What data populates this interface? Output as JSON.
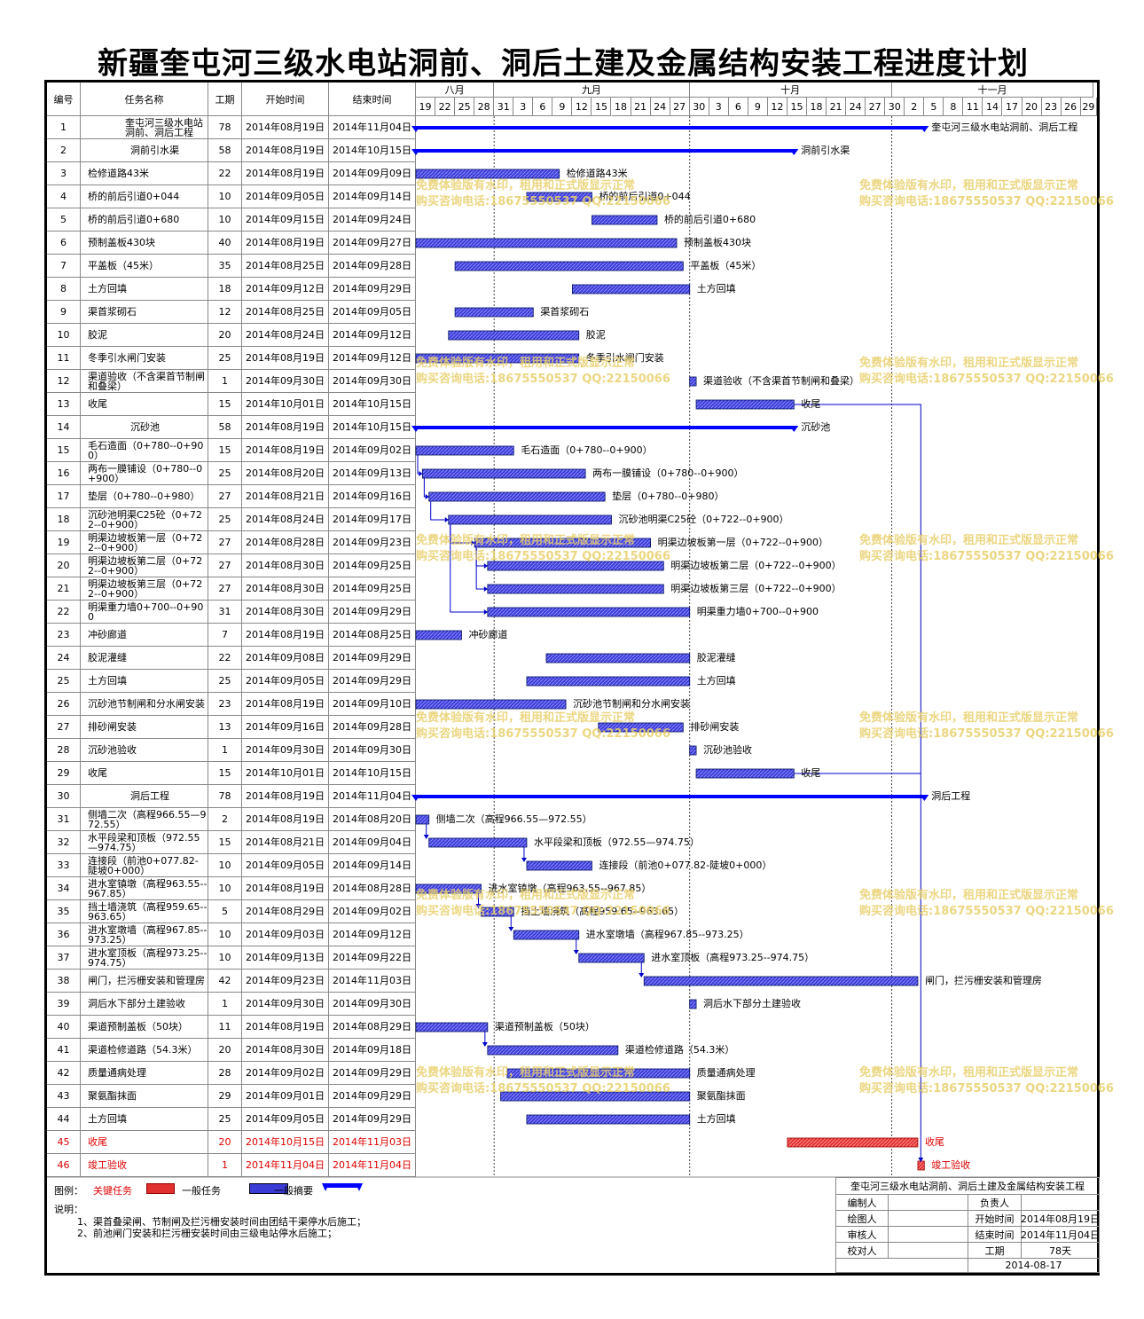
{
  "title": "新疆奎屯河三级水电站洞前、洞后土建及金属结构安装工程进度计划",
  "headers": {
    "num": "编号",
    "name": "任务名称",
    "dur": "工期",
    "start": "开始时间",
    "end": "结束时间"
  },
  "months": [
    "八月",
    "九月",
    "十月",
    "十一月"
  ],
  "days": [
    "19",
    "22",
    "25",
    "28",
    "31",
    "3",
    "6",
    "9",
    "12",
    "15",
    "18",
    "21",
    "24",
    "27",
    "30",
    "3",
    "6",
    "9",
    "12",
    "15",
    "18",
    "21",
    "24",
    "27",
    "30",
    "2",
    "5",
    "8",
    "11",
    "14",
    "17",
    "20",
    "23",
    "26",
    "29"
  ],
  "tasks": [
    {
      "id": "1",
      "name": "奎屯河三级水电站洞前、洞后工程",
      "dur": "78",
      "start": "2014年08月19日",
      "end": "2014年11月04日",
      "s": 0,
      "d": 78,
      "type": "summary",
      "label": "奎屯河三级水电站洞前、洞后工程"
    },
    {
      "id": "2",
      "name": "洞前引水渠",
      "dur": "58",
      "start": "2014年08月19日",
      "end": "2014年10月15日",
      "s": 0,
      "d": 58,
      "type": "summary",
      "label": "洞前引水渠"
    },
    {
      "id": "3",
      "name": "检修道路43米",
      "dur": "22",
      "start": "2014年08月19日",
      "end": "2014年09月09日",
      "s": 0,
      "d": 22,
      "type": "task",
      "label": "检修道路43米"
    },
    {
      "id": "4",
      "name": "桥的前后引道0+044",
      "dur": "10",
      "start": "2014年09月05日",
      "end": "2014年09月14日",
      "s": 17,
      "d": 10,
      "type": "task",
      "label": "桥的前后引道0+044"
    },
    {
      "id": "5",
      "name": "桥的前后引道0+680",
      "dur": "10",
      "start": "2014年09月15日",
      "end": "2014年09月24日",
      "s": 27,
      "d": 10,
      "type": "task",
      "label": "桥的前后引道0+680"
    },
    {
      "id": "6",
      "name": "预制盖板430块",
      "dur": "40",
      "start": "2014年08月19日",
      "end": "2014年09月27日",
      "s": 0,
      "d": 40,
      "type": "task",
      "label": "预制盖板430块"
    },
    {
      "id": "7",
      "name": "平盖板（45米）",
      "dur": "35",
      "start": "2014年08月25日",
      "end": "2014年09月28日",
      "s": 6,
      "d": 35,
      "type": "task",
      "label": "平盖板（45米）"
    },
    {
      "id": "8",
      "name": "土方回填",
      "dur": "18",
      "start": "2014年09月12日",
      "end": "2014年09月29日",
      "s": 24,
      "d": 18,
      "type": "task",
      "label": "土方回填"
    },
    {
      "id": "9",
      "name": "渠首浆砌石",
      "dur": "12",
      "start": "2014年08月25日",
      "end": "2014年09月05日",
      "s": 6,
      "d": 12,
      "type": "task",
      "label": "渠首浆砌石"
    },
    {
      "id": "10",
      "name": "胶泥",
      "dur": "20",
      "start": "2014年08月24日",
      "end": "2014年09月12日",
      "s": 5,
      "d": 20,
      "type": "task",
      "label": "胶泥"
    },
    {
      "id": "11",
      "name": "冬季引水闸门安装",
      "dur": "25",
      "start": "2014年08月19日",
      "end": "2014年09月12日",
      "s": 0,
      "d": 25,
      "type": "task",
      "label": "冬季引水闸门安装"
    },
    {
      "id": "12",
      "name": "渠道验收（不含渠首节制闸和叠梁）",
      "dur": "1",
      "start": "2014年09月30日",
      "end": "2014年09月30日",
      "s": 42,
      "d": 1,
      "type": "task",
      "label": "渠道验收（不含渠首节制闸和叠梁）"
    },
    {
      "id": "13",
      "name": "收尾",
      "dur": "15",
      "start": "2014年10月01日",
      "end": "2014年10月15日",
      "s": 43,
      "d": 15,
      "type": "task",
      "label": "收尾"
    },
    {
      "id": "14",
      "name": "沉砂池",
      "dur": "58",
      "start": "2014年08月19日",
      "end": "2014年10月15日",
      "s": 0,
      "d": 58,
      "type": "summary",
      "label": "沉砂池"
    },
    {
      "id": "15",
      "name": "毛石造面（0+780--0+900）",
      "dur": "15",
      "start": "2014年08月19日",
      "end": "2014年09月02日",
      "s": 0,
      "d": 15,
      "type": "task",
      "label": "毛石造面（0+780--0+900）"
    },
    {
      "id": "16",
      "name": "两布一膜铺设（0+780--0+900）",
      "dur": "25",
      "start": "2014年08月20日",
      "end": "2014年09月13日",
      "s": 1,
      "d": 25,
      "type": "task",
      "label": "两布一膜铺设（0+780--0+900）"
    },
    {
      "id": "17",
      "name": "垫层（0+780--0+980）",
      "dur": "27",
      "start": "2014年08月21日",
      "end": "2014年09月16日",
      "s": 2,
      "d": 27,
      "type": "task",
      "label": "垫层（0+780--0+980）"
    },
    {
      "id": "18",
      "name": "沉砂池明渠C25砼（0+722--0+900）",
      "dur": "25",
      "start": "2014年08月24日",
      "end": "2014年09月17日",
      "s": 5,
      "d": 25,
      "type": "task",
      "label": "沉砂池明渠C25砼（0+722--0+900）"
    },
    {
      "id": "19",
      "name": "明渠边坡板第一层（0+722--0+900）",
      "dur": "27",
      "start": "2014年08月28日",
      "end": "2014年09月23日",
      "s": 9,
      "d": 27,
      "type": "task",
      "label": "明渠边坡板第一层（0+722--0+900）"
    },
    {
      "id": "20",
      "name": "明渠边坡板第二层（0+722--0+900）",
      "dur": "27",
      "start": "2014年08月30日",
      "end": "2014年09月25日",
      "s": 11,
      "d": 27,
      "type": "task",
      "label": "明渠边坡板第二层（0+722--0+900）"
    },
    {
      "id": "21",
      "name": "明渠边坡板第三层（0+722--0+900）",
      "dur": "27",
      "start": "2014年08月30日",
      "end": "2014年09月25日",
      "s": 11,
      "d": 27,
      "type": "task",
      "label": "明渠边坡板第三层（0+722--0+900）"
    },
    {
      "id": "22",
      "name": "明渠重力墙0+700--0+900",
      "dur": "31",
      "start": "2014年08月30日",
      "end": "2014年09月29日",
      "s": 11,
      "d": 31,
      "type": "task",
      "label": "明渠重力墙0+700--0+900"
    },
    {
      "id": "23",
      "name": "冲砂廊道",
      "dur": "7",
      "start": "2014年08月19日",
      "end": "2014年08月25日",
      "s": 0,
      "d": 7,
      "type": "task",
      "label": "冲砂廊道"
    },
    {
      "id": "24",
      "name": "胶泥灌缝",
      "dur": "22",
      "start": "2014年09月08日",
      "end": "2014年09月29日",
      "s": 20,
      "d": 22,
      "type": "task",
      "label": "胶泥灌缝"
    },
    {
      "id": "25",
      "name": "土方回填",
      "dur": "25",
      "start": "2014年09月05日",
      "end": "2014年09月29日",
      "s": 17,
      "d": 25,
      "type": "task",
      "label": "土方回填"
    },
    {
      "id": "26",
      "name": "沉砂池节制闸和分水闸安装",
      "dur": "23",
      "start": "2014年08月19日",
      "end": "2014年09月10日",
      "s": 0,
      "d": 23,
      "type": "task",
      "label": "沉砂池节制闸和分水闸安装"
    },
    {
      "id": "27",
      "name": "排砂闸安装",
      "dur": "13",
      "start": "2014年09月16日",
      "end": "2014年09月28日",
      "s": 28,
      "d": 13,
      "type": "task",
      "label": "排砂闸安装"
    },
    {
      "id": "28",
      "name": "沉砂池验收",
      "dur": "1",
      "start": "2014年09月30日",
      "end": "2014年09月30日",
      "s": 42,
      "d": 1,
      "type": "task",
      "label": "沉砂池验收"
    },
    {
      "id": "29",
      "name": "收尾",
      "dur": "15",
      "start": "2014年10月01日",
      "end": "2014年10月15日",
      "s": 43,
      "d": 15,
      "type": "task",
      "label": "收尾"
    },
    {
      "id": "30",
      "name": "洞后工程",
      "dur": "78",
      "start": "2014年08月19日",
      "end": "2014年11月04日",
      "s": 0,
      "d": 78,
      "type": "summary",
      "label": "洞后工程"
    },
    {
      "id": "31",
      "name": "侧墙二次（高程966.55—972.55）",
      "dur": "2",
      "start": "2014年08月19日",
      "end": "2014年08月20日",
      "s": 0,
      "d": 2,
      "type": "task",
      "label": "侧墙二次（高程966.55—972.55）"
    },
    {
      "id": "32",
      "name": "水平段梁和顶板（972.55—974.75）",
      "dur": "15",
      "start": "2014年08月21日",
      "end": "2014年09月04日",
      "s": 2,
      "d": 15,
      "type": "task",
      "label": "水平段梁和顶板（972.55—974.75）"
    },
    {
      "id": "33",
      "name": "连接段（前池0+077.82-陡坡0+000）",
      "dur": "10",
      "start": "2014年09月05日",
      "end": "2014年09月14日",
      "s": 17,
      "d": 10,
      "type": "task",
      "label": "连接段（前池0+077.82-陡坡0+000）"
    },
    {
      "id": "34",
      "name": "进水室镇墩（高程963.55--967.85）",
      "dur": "10",
      "start": "2014年08月19日",
      "end": "2014年08月28日",
      "s": 0,
      "d": 10,
      "type": "task",
      "label": "进水室镇墩（高程963.55--967.85）"
    },
    {
      "id": "35",
      "name": "挡土墙浇筑（高程959.65--963.65）",
      "dur": "5",
      "start": "2014年08月29日",
      "end": "2014年09月02日",
      "s": 10,
      "d": 5,
      "type": "task",
      "label": "挡土墙浇筑（高程959.65--963.65）"
    },
    {
      "id": "36",
      "name": "进水室墩墙（高程967.85--973.25）",
      "dur": "10",
      "start": "2014年09月03日",
      "end": "2014年09月12日",
      "s": 15,
      "d": 10,
      "type": "task",
      "label": "进水室墩墙（高程967.85--973.25）"
    },
    {
      "id": "37",
      "name": "进水室顶板（高程973.25--974.75）",
      "dur": "10",
      "start": "2014年09月13日",
      "end": "2014年09月22日",
      "s": 25,
      "d": 10,
      "type": "task",
      "label": "进水室顶板（高程973.25--974.75）"
    },
    {
      "id": "38",
      "name": "闸门，拦污栅安装和管理房",
      "dur": "42",
      "start": "2014年09月23日",
      "end": "2014年11月03日",
      "s": 35,
      "d": 42,
      "type": "task",
      "label": "闸门，拦污栅安装和管理房"
    },
    {
      "id": "39",
      "name": "洞后水下部分土建验收",
      "dur": "1",
      "start": "2014年09月30日",
      "end": "2014年09月30日",
      "s": 42,
      "d": 1,
      "type": "task",
      "label": "洞后水下部分土建验收"
    },
    {
      "id": "40",
      "name": "渠道预制盖板（50块）",
      "dur": "11",
      "start": "2014年08月19日",
      "end": "2014年08月29日",
      "s": 0,
      "d": 11,
      "type": "task",
      "label": "渠道预制盖板（50块）"
    },
    {
      "id": "41",
      "name": "渠道检修道路（54.3米）",
      "dur": "20",
      "start": "2014年08月30日",
      "end": "2014年09月18日",
      "s": 11,
      "d": 20,
      "type": "task",
      "label": "渠道检修道路（54.3米）"
    },
    {
      "id": "42",
      "name": "质量通病处理",
      "dur": "28",
      "start": "2014年09月02日",
      "end": "2014年09月29日",
      "s": 14,
      "d": 28,
      "type": "task",
      "label": "质量通病处理"
    },
    {
      "id": "43",
      "name": "聚氨酯抹面",
      "dur": "29",
      "start": "2014年09月01日",
      "end": "2014年09月29日",
      "s": 13,
      "d": 29,
      "type": "task",
      "label": "聚氨酯抹面"
    },
    {
      "id": "44",
      "name": "土方回填",
      "dur": "25",
      "start": "2014年09月05日",
      "end": "2014年09月29日",
      "s": 17,
      "d": 25,
      "type": "task",
      "label": "土方回填"
    },
    {
      "id": "45",
      "name": "收尾",
      "dur": "20",
      "start": "2014年10月15日",
      "end": "2014年11月03日",
      "s": 57,
      "d": 20,
      "type": "critical",
      "label": "收尾"
    },
    {
      "id": "46",
      "name": "竣工验收",
      "dur": "1",
      "start": "2014年11月04日",
      "end": "2014年11月04日",
      "s": 77,
      "d": 1,
      "type": "critical",
      "label": "竣工验收"
    }
  ],
  "watermark": {
    "line1": "免费体验版有水印，租用和正式版显示正常",
    "line2": "购买咨询电话:18675550537 QQ:22150066"
  },
  "legend": {
    "title": "图例：",
    "critical": "关键任务",
    "normal": "一般任务",
    "summary": "一般摘要"
  },
  "notes": {
    "title": "说明：",
    "line1": "1、渠首叠梁闸、节制闸及拦污栅安装时间由团结干渠停水后施工；",
    "line2": "2、前池闸门安装和拦污栅安装时间由三级电站停水后施工；"
  },
  "titleblock": {
    "project": "奎屯河三级水电站洞前、洞后土建及金属结构安装工程",
    "compiler": "编制人",
    "owner": "负责人",
    "drawer": "绘图人",
    "start_label": "开始时间",
    "start_value": "2014年08月19日",
    "reviewer": "审核人",
    "end_label": "结束时间",
    "end_value": "2014年11月04日",
    "checker": "校对人",
    "dur_label": "工期",
    "dur_value": "78天",
    "date": "2014-08-17"
  },
  "colors": {
    "task": "#3b3bd6",
    "summary": "#0000ff",
    "critical": "#e03030",
    "link": "#0000cc",
    "watermark": "#e8cf6a"
  }
}
